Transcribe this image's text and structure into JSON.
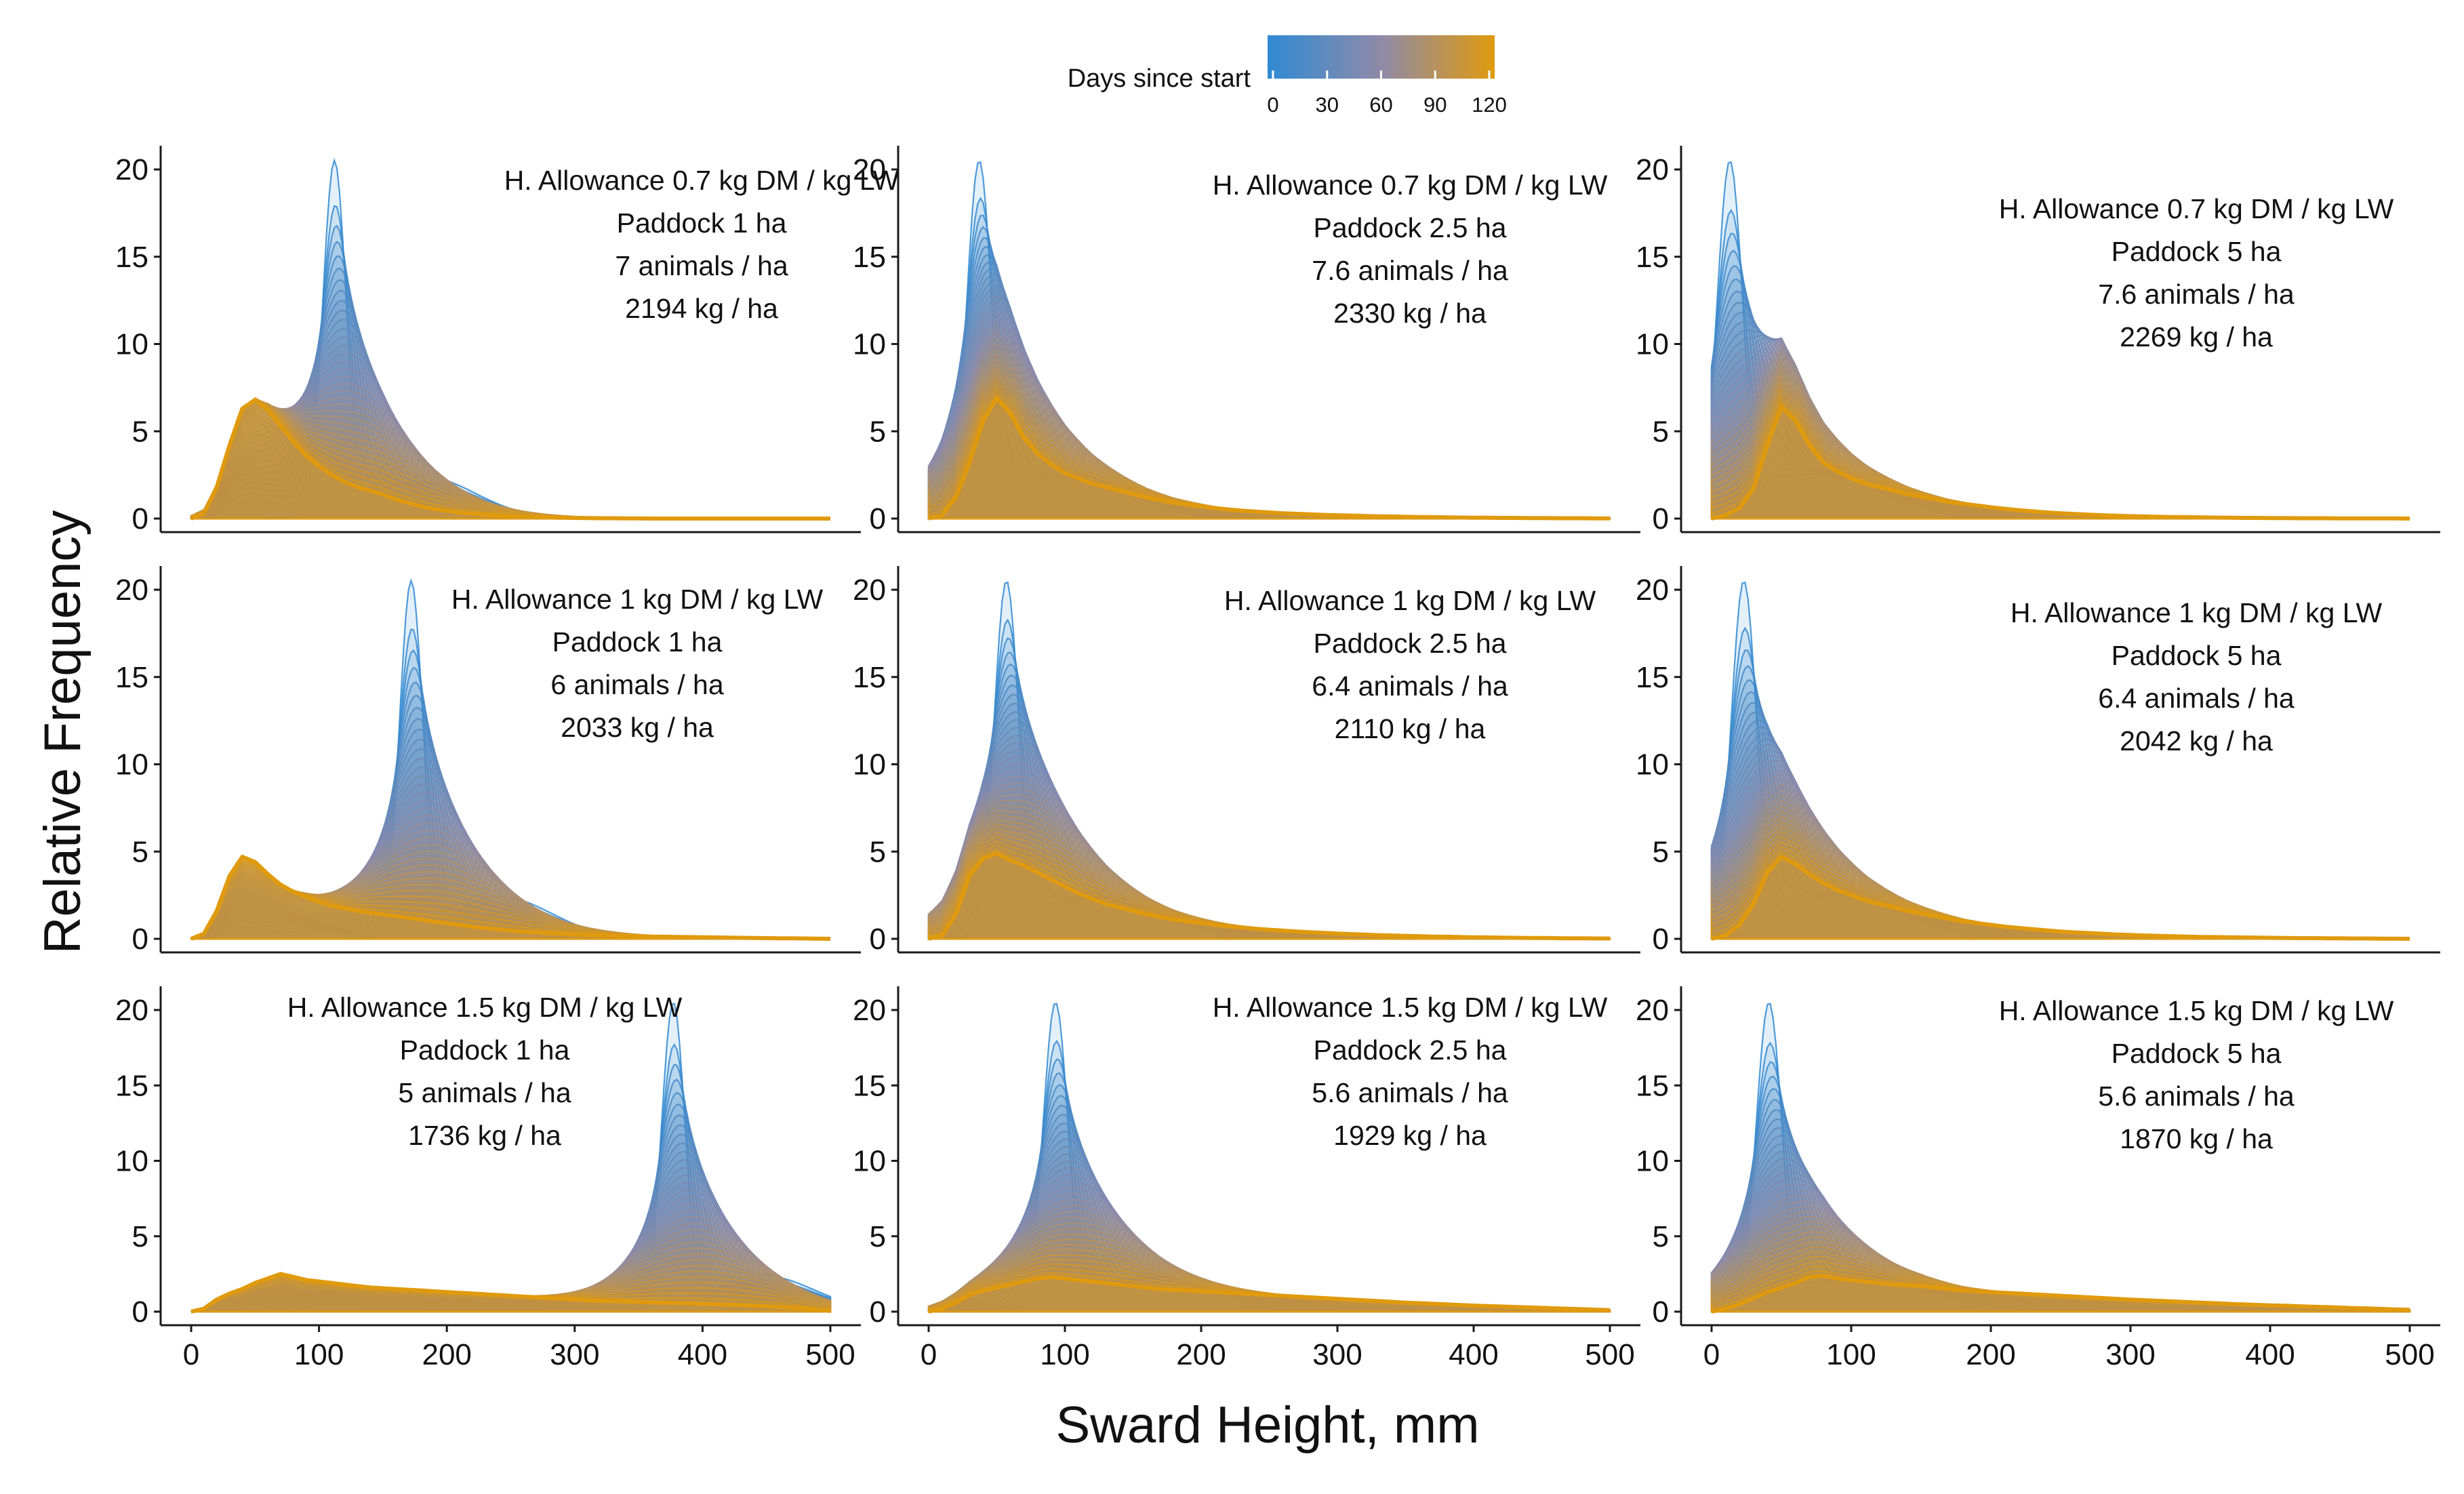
{
  "legend": {
    "title": "Days since start",
    "ticks": [
      "0",
      "30",
      "60",
      "90",
      "120"
    ],
    "color_low": "#2f8ad3",
    "color_mid": "#8f8aa8",
    "color_high": "#e09a0e"
  },
  "colors": {
    "final_curve": "#e09a0e",
    "axis": "#1a1a1a"
  },
  "chart_data": {
    "type": "area",
    "xlabel": "Sward Height, mm",
    "ylabel": "Relative Frequency",
    "xlim": [
      0,
      500
    ],
    "ylim": [
      0,
      20
    ],
    "x_ticks": [
      "0",
      "100",
      "200",
      "300",
      "400",
      "500"
    ],
    "y_ticks": [
      "0",
      "5",
      "10",
      "15",
      "20"
    ],
    "panel_layout": "3 rows x 3 columns, shared axes",
    "time_range_days": [
      0,
      120
    ],
    "x": [
      0,
      10,
      20,
      30,
      40,
      50,
      60,
      70,
      80,
      90,
      100,
      110,
      120,
      130,
      140,
      150,
      160,
      170,
      180,
      190,
      200,
      210,
      220,
      230,
      240,
      250,
      260,
      270,
      280,
      290,
      300,
      310,
      320,
      330,
      340,
      350,
      360,
      370,
      380,
      390,
      400,
      410,
      420,
      430,
      440,
      450,
      460,
      470,
      480,
      490,
      500
    ],
    "panels": [
      {
        "annotation": [
          "H. Allowance 0.7 kg DM / kg LW",
          "Paddock 1 ha",
          "7 animals / ha",
          "2194 kg / ha"
        ],
        "initial_peak": {
          "x": 112,
          "y": 20
        },
        "final_curve": [
          0,
          0.3,
          1.8,
          4.2,
          6.3,
          6.8,
          6.2,
          5.3,
          4.4,
          3.6,
          3.0,
          2.5,
          2.1,
          1.8,
          1.6,
          1.4,
          1.1,
          0.9,
          0.7,
          0.55,
          0.45,
          0.35,
          0.28,
          0.22,
          0.17,
          0.13,
          0.1,
          0.08,
          0.06,
          0.05,
          0.04,
          0.03,
          0.02,
          0.02,
          0.01,
          0.01,
          0,
          0,
          0,
          0,
          0,
          0,
          0,
          0,
          0,
          0,
          0,
          0,
          0,
          0,
          0
        ]
      },
      {
        "annotation": [
          "H. Allowance 0.7 kg DM / kg LW",
          "Paddock 2.5 ha",
          "7.6 animals / ha",
          "2330 kg / ha"
        ],
        "initial_peak": {
          "x": 37,
          "y": 20
        },
        "final_curve": [
          0,
          0.2,
          1.2,
          3.2,
          5.6,
          6.9,
          6.0,
          4.6,
          3.7,
          3.1,
          2.6,
          2.3,
          2.0,
          1.8,
          1.6,
          1.4,
          1.2,
          1.05,
          0.9,
          0.8,
          0.7,
          0.6,
          0.52,
          0.45,
          0.4,
          0.35,
          0.3,
          0.27,
          0.24,
          0.21,
          0.19,
          0.17,
          0.15,
          0.13,
          0.12,
          0.1,
          0.09,
          0.08,
          0.07,
          0.06,
          0.05,
          0.05,
          0.04,
          0.04,
          0.03,
          0.03,
          0.02,
          0.02,
          0.02,
          0.01,
          0.01
        ]
      },
      {
        "annotation": [
          "H. Allowance 0.7 kg DM / kg LW",
          "Paddock 5 ha",
          "7.6 animals / ha",
          "2269 kg / ha"
        ],
        "initial_peak": {
          "x": 13,
          "y": 20
        },
        "final_curve": [
          0,
          0.2,
          0.6,
          1.7,
          4.2,
          6.4,
          5.6,
          4.2,
          3.2,
          2.7,
          2.3,
          2.0,
          1.8,
          1.6,
          1.4,
          1.25,
          1.1,
          0.95,
          0.85,
          0.75,
          0.65,
          0.56,
          0.48,
          0.41,
          0.35,
          0.3,
          0.26,
          0.22,
          0.19,
          0.16,
          0.14,
          0.12,
          0.1,
          0.09,
          0.08,
          0.07,
          0.06,
          0.05,
          0.04,
          0.04,
          0.03,
          0.03,
          0.02,
          0.02,
          0.02,
          0.01,
          0.01,
          0.01,
          0.01,
          0.01,
          0
        ]
      },
      {
        "annotation": [
          "H. Allowance 1 kg DM / kg LW",
          "Paddock 1 ha",
          "6 animals / ha",
          "2033 kg / ha"
        ],
        "initial_peak": {
          "x": 172,
          "y": 20
        },
        "final_curve": [
          0,
          0.3,
          1.6,
          3.6,
          4.7,
          4.4,
          3.7,
          3.1,
          2.7,
          2.4,
          2.1,
          1.9,
          1.75,
          1.6,
          1.5,
          1.4,
          1.3,
          1.2,
          1.1,
          1.0,
          0.9,
          0.8,
          0.7,
          0.62,
          0.55,
          0.48,
          0.42,
          0.37,
          0.32,
          0.28,
          0.25,
          0.22,
          0.2,
          0.18,
          0.16,
          0.14,
          0.13,
          0.12,
          0.11,
          0.1,
          0.09,
          0.08,
          0.07,
          0.06,
          0.05,
          0.04,
          0.03,
          0.03,
          0.02,
          0.01,
          0
        ]
      },
      {
        "annotation": [
          "H. Allowance 1 kg DM / kg LW",
          "Paddock 2.5 ha",
          "6.4 animals / ha",
          "2110 kg / ha"
        ],
        "initial_peak": {
          "x": 57,
          "y": 20
        },
        "final_curve": [
          0,
          0.2,
          1.4,
          3.6,
          4.6,
          4.9,
          4.5,
          4.2,
          3.8,
          3.4,
          3.0,
          2.6,
          2.3,
          2.0,
          1.8,
          1.6,
          1.4,
          1.25,
          1.1,
          1.0,
          0.9,
          0.8,
          0.72,
          0.65,
          0.58,
          0.52,
          0.47,
          0.42,
          0.38,
          0.34,
          0.3,
          0.27,
          0.24,
          0.21,
          0.19,
          0.17,
          0.15,
          0.13,
          0.12,
          0.1,
          0.09,
          0.08,
          0.07,
          0.06,
          0.05,
          0.05,
          0.04,
          0.03,
          0.03,
          0.02,
          0.02
        ]
      },
      {
        "annotation": [
          "H. Allowance 1 kg DM / kg LW",
          "Paddock 5 ha",
          "6.4 animals / ha",
          "2042 kg / ha"
        ],
        "initial_peak": {
          "x": 23,
          "y": 20
        },
        "final_curve": [
          0,
          0.2,
          0.8,
          2.0,
          3.8,
          4.7,
          4.3,
          3.7,
          3.2,
          2.8,
          2.5,
          2.2,
          2.0,
          1.8,
          1.6,
          1.45,
          1.3,
          1.15,
          1.0,
          0.9,
          0.8,
          0.7,
          0.62,
          0.55,
          0.48,
          0.42,
          0.37,
          0.33,
          0.29,
          0.25,
          0.22,
          0.19,
          0.17,
          0.15,
          0.13,
          0.11,
          0.1,
          0.09,
          0.08,
          0.07,
          0.06,
          0.05,
          0.04,
          0.04,
          0.03,
          0.03,
          0.02,
          0.02,
          0.01,
          0.01,
          0
        ]
      },
      {
        "annotation": [
          "H. Allowance 1.5 kg DM / kg LW",
          "Paddock 1 ha",
          "5 animals / ha",
          "1736 kg / ha"
        ],
        "initial_peak": {
          "x": 377,
          "y": 20
        },
        "final_curve": [
          0,
          0.2,
          0.8,
          1.2,
          1.5,
          1.9,
          2.2,
          2.5,
          2.3,
          2.1,
          2.0,
          1.9,
          1.8,
          1.7,
          1.6,
          1.55,
          1.5,
          1.45,
          1.4,
          1.35,
          1.3,
          1.25,
          1.2,
          1.15,
          1.1,
          1.05,
          1.0,
          0.95,
          0.9,
          0.85,
          0.8,
          0.75,
          0.72,
          0.7,
          0.68,
          0.65,
          0.62,
          0.6,
          0.58,
          0.55,
          0.52,
          0.5,
          0.47,
          0.44,
          0.4,
          0.36,
          0.32,
          0.27,
          0.2,
          0.12,
          0.05
        ]
      },
      {
        "annotation": [
          "H. Allowance 1.5 kg DM / kg LW",
          "Paddock 2.5 ha",
          "5.6 animals / ha",
          "1929 kg / ha"
        ],
        "initial_peak": {
          "x": 93,
          "y": 20
        },
        "final_curve": [
          0,
          0.2,
          0.6,
          1.1,
          1.4,
          1.6,
          1.8,
          2.0,
          2.2,
          2.3,
          2.2,
          2.1,
          2.0,
          1.9,
          1.8,
          1.7,
          1.6,
          1.5,
          1.45,
          1.4,
          1.35,
          1.3,
          1.25,
          1.2,
          1.15,
          1.1,
          1.05,
          1.0,
          0.95,
          0.9,
          0.85,
          0.8,
          0.75,
          0.7,
          0.65,
          0.6,
          0.56,
          0.52,
          0.48,
          0.44,
          0.4,
          0.37,
          0.34,
          0.31,
          0.28,
          0.25,
          0.22,
          0.19,
          0.16,
          0.13,
          0.1
        ]
      },
      {
        "annotation": [
          "H. Allowance 1.5 kg DM / kg LW",
          "Paddock 5 ha",
          "5.6 animals / ha",
          "1870 kg / ha"
        ],
        "initial_peak": {
          "x": 41,
          "y": 20
        },
        "final_curve": [
          0,
          0.2,
          0.5,
          0.9,
          1.3,
          1.6,
          1.9,
          2.3,
          2.4,
          2.2,
          2.1,
          2.0,
          1.9,
          1.8,
          1.75,
          1.7,
          1.6,
          1.5,
          1.4,
          1.35,
          1.3,
          1.25,
          1.2,
          1.15,
          1.1,
          1.05,
          1.0,
          0.95,
          0.9,
          0.85,
          0.8,
          0.76,
          0.72,
          0.68,
          0.64,
          0.6,
          0.56,
          0.52,
          0.48,
          0.45,
          0.42,
          0.39,
          0.36,
          0.33,
          0.3,
          0.27,
          0.24,
          0.21,
          0.18,
          0.15,
          0.12
        ]
      }
    ]
  }
}
